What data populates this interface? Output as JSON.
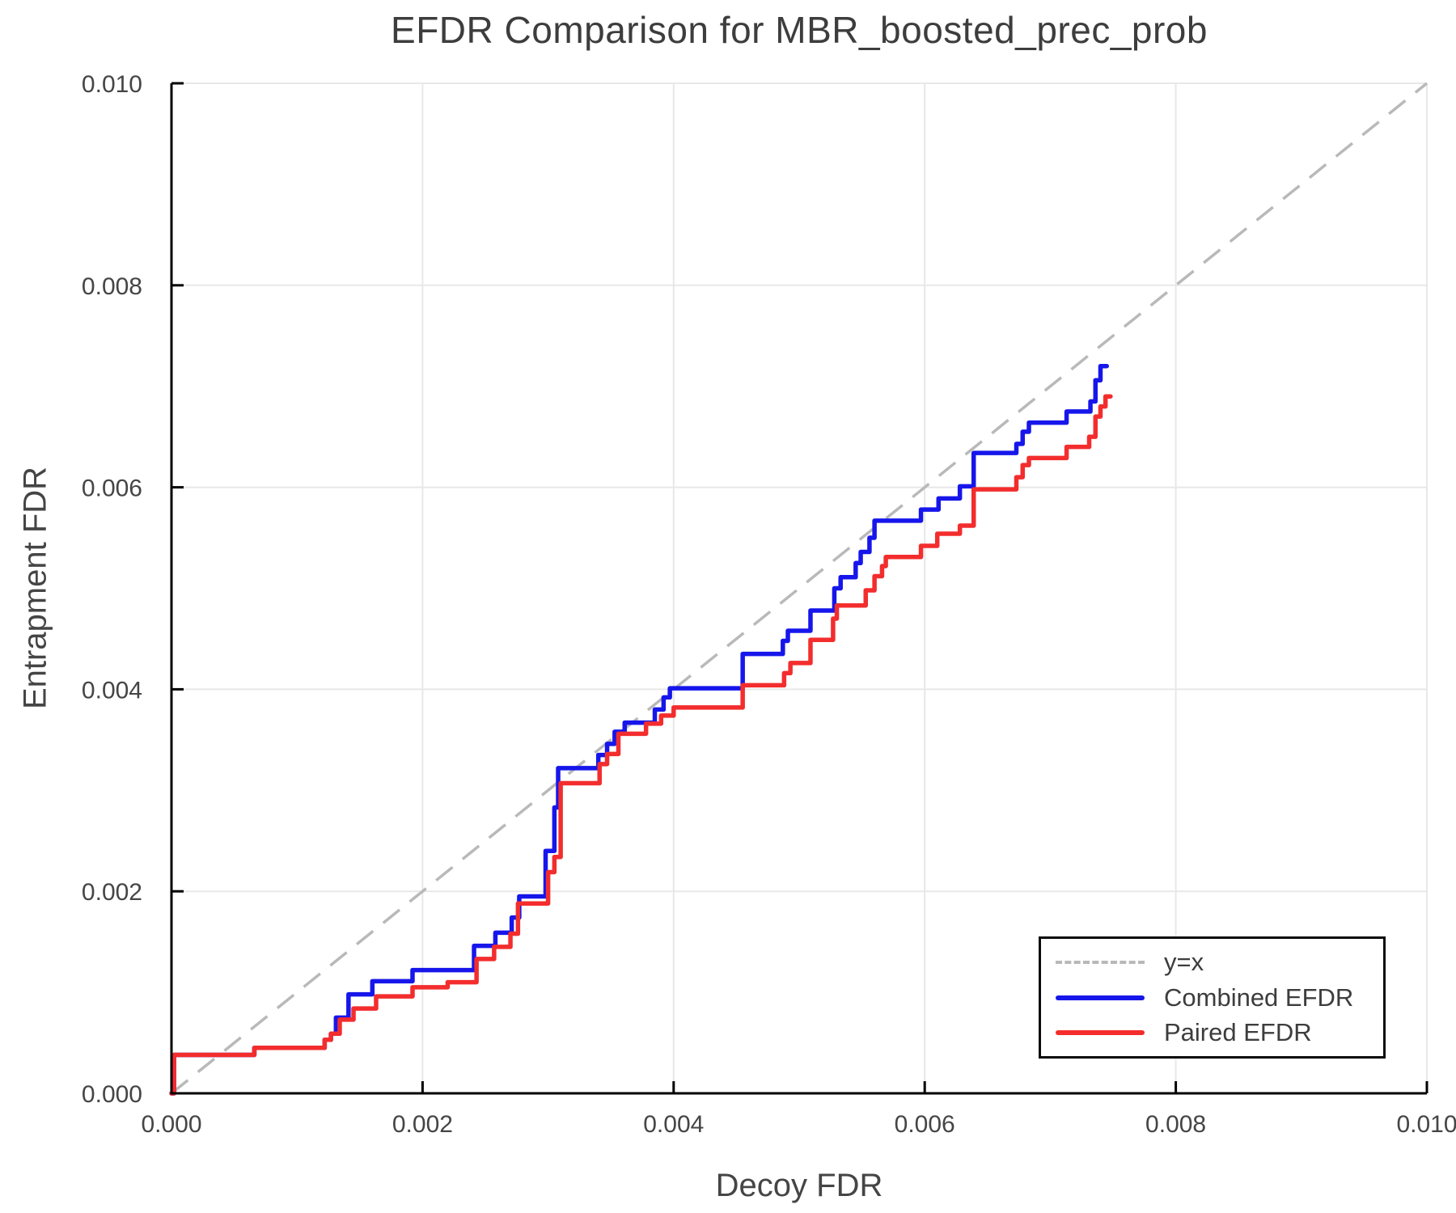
{
  "chart_data": {
    "type": "line",
    "subtype": "step",
    "title": "EFDR Comparison for MBR_boosted_prec_prob",
    "xlabel": "Decoy FDR",
    "ylabel": "Entrapment FDR",
    "xlim": [
      0.0,
      0.01
    ],
    "ylim": [
      0.0,
      0.01
    ],
    "grid": true,
    "xticks": {
      "values": [
        0.0,
        0.002,
        0.004,
        0.006,
        0.008,
        0.01
      ],
      "labels": [
        "0.000",
        "0.002",
        "0.004",
        "0.006",
        "0.008",
        "0.010"
      ]
    },
    "yticks": {
      "values": [
        0.0,
        0.002,
        0.004,
        0.006,
        0.008,
        0.01
      ],
      "labels": [
        "0.000",
        "0.002",
        "0.004",
        "0.006",
        "0.008",
        "0.010"
      ]
    },
    "reference_line": {
      "label": "y=x",
      "from": [
        0.0,
        0.0
      ],
      "to": [
        0.01,
        0.01
      ],
      "color": "#b9b9b9",
      "style": "dashed"
    },
    "series": [
      {
        "name": "Combined EFDR",
        "color": "#1616eb",
        "points": [
          [
            0.0,
            0.0
          ],
          [
            2e-05,
            0.00038
          ],
          [
            0.00066,
            0.00045
          ],
          [
            0.00122,
            0.00053
          ],
          [
            0.00127,
            0.00059
          ],
          [
            0.00131,
            0.00075
          ],
          [
            0.00141,
            0.00098
          ],
          [
            0.0016,
            0.00111
          ],
          [
            0.00192,
            0.00122
          ],
          [
            0.00241,
            0.00146
          ],
          [
            0.00258,
            0.00159
          ],
          [
            0.00271,
            0.00174
          ],
          [
            0.00277,
            0.00195
          ],
          [
            0.00298,
            0.0024
          ],
          [
            0.00305,
            0.00283
          ],
          [
            0.00308,
            0.00322
          ],
          [
            0.0034,
            0.00335
          ],
          [
            0.00347,
            0.00346
          ],
          [
            0.00353,
            0.00358
          ],
          [
            0.00361,
            0.00367
          ],
          [
            0.00385,
            0.0038
          ],
          [
            0.00392,
            0.00392
          ],
          [
            0.00397,
            0.00401
          ],
          [
            0.00455,
            0.00435
          ],
          [
            0.00487,
            0.00448
          ],
          [
            0.00491,
            0.00458
          ],
          [
            0.00509,
            0.00478
          ],
          [
            0.00528,
            0.005
          ],
          [
            0.00533,
            0.00511
          ],
          [
            0.00545,
            0.00525
          ],
          [
            0.00549,
            0.00536
          ],
          [
            0.00556,
            0.0055
          ],
          [
            0.0056,
            0.00567
          ],
          [
            0.00597,
            0.00578
          ],
          [
            0.00611,
            0.00589
          ],
          [
            0.00628,
            0.00601
          ],
          [
            0.00639,
            0.00634
          ],
          [
            0.00673,
            0.00643
          ],
          [
            0.00678,
            0.00655
          ],
          [
            0.00683,
            0.00664
          ],
          [
            0.00713,
            0.00675
          ],
          [
            0.00732,
            0.00685
          ],
          [
            0.00736,
            0.00706
          ],
          [
            0.0074,
            0.0072
          ],
          [
            0.00745,
            0.0072
          ]
        ]
      },
      {
        "name": "Paired EFDR",
        "color": "#f32d2d",
        "points": [
          [
            0.0,
            0.0
          ],
          [
            2e-05,
            0.00038
          ],
          [
            0.00066,
            0.00045
          ],
          [
            0.00122,
            0.00053
          ],
          [
            0.00127,
            0.00059
          ],
          [
            0.00134,
            0.00073
          ],
          [
            0.00145,
            0.00084
          ],
          [
            0.00163,
            0.00096
          ],
          [
            0.00192,
            0.00105
          ],
          [
            0.0022,
            0.0011
          ],
          [
            0.00243,
            0.00133
          ],
          [
            0.00257,
            0.00145
          ],
          [
            0.0027,
            0.00158
          ],
          [
            0.00276,
            0.00188
          ],
          [
            0.003,
            0.00219
          ],
          [
            0.00305,
            0.00234
          ],
          [
            0.0031,
            0.00307
          ],
          [
            0.00341,
            0.00326
          ],
          [
            0.00347,
            0.00336
          ],
          [
            0.00356,
            0.00356
          ],
          [
            0.00378,
            0.00366
          ],
          [
            0.0039,
            0.00374
          ],
          [
            0.004,
            0.00382
          ],
          [
            0.00455,
            0.00404
          ],
          [
            0.00488,
            0.00416
          ],
          [
            0.00493,
            0.00426
          ],
          [
            0.00509,
            0.00449
          ],
          [
            0.00527,
            0.0047
          ],
          [
            0.0053,
            0.00483
          ],
          [
            0.00553,
            0.00498
          ],
          [
            0.0056,
            0.00512
          ],
          [
            0.00566,
            0.00522
          ],
          [
            0.00569,
            0.00531
          ],
          [
            0.00597,
            0.00542
          ],
          [
            0.0061,
            0.00554
          ],
          [
            0.00628,
            0.00562
          ],
          [
            0.00639,
            0.00598
          ],
          [
            0.00673,
            0.0061
          ],
          [
            0.00678,
            0.00622
          ],
          [
            0.00683,
            0.00629
          ],
          [
            0.00713,
            0.0064
          ],
          [
            0.00731,
            0.0065
          ],
          [
            0.00736,
            0.0067
          ],
          [
            0.0074,
            0.0068
          ],
          [
            0.00744,
            0.0069
          ],
          [
            0.00748,
            0.0069
          ]
        ]
      }
    ],
    "legend": {
      "position": "lower-right",
      "entries": [
        {
          "label": "y=x",
          "color": "#b9b9b9",
          "style": "dashed"
        },
        {
          "label": "Combined EFDR",
          "color": "#1616eb",
          "style": "solid"
        },
        {
          "label": "Paired EFDR",
          "color": "#f32d2d",
          "style": "solid"
        }
      ]
    }
  },
  "colors": {
    "background": "#ffffff",
    "grid": "#e8e8e8",
    "spine": "#000000",
    "tick_text": "#454545",
    "title_text": "#3d3d3d"
  }
}
